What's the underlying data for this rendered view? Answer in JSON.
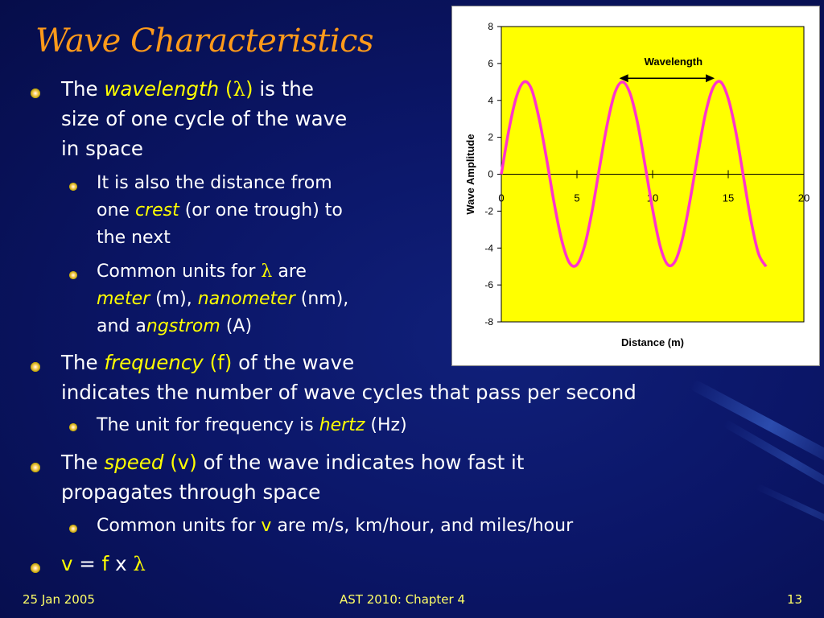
{
  "slide": {
    "title": "Wave Characteristics",
    "footer_left": "25 Jan 2005",
    "footer_center": "AST 2010: Chapter 4",
    "footer_right": "13"
  },
  "bullets": {
    "b1_the": "The",
    "b1_term": "wavelength",
    "b1_open": "(",
    "b1_symbol": "λ",
    "b1_close": ")",
    "b1_rest1": "is the",
    "b1_line2": "size of one cycle of the wave",
    "b1_line3": "in space",
    "s1a_line1": "It is also the distance from",
    "s1a_line2_pre": "one",
    "s1a_line2_term": "crest",
    "s1a_line2_post": "(or one trough) to",
    "s1a_line3": "the next",
    "s1b_pre": "Common units for",
    "s1b_symbol": "λ",
    "s1b_post": "are",
    "s1b_meter": "meter",
    "s1b_m": "(m),",
    "s1b_nanometer": "nanometer",
    "s1b_nm": "(nm),",
    "s1b_and": "and a",
    "s1b_angstrom": "ngstrom",
    "s1b_A": "(A)",
    "b2_the": "The",
    "b2_term": "frequency",
    "b2_sym": "(f)",
    "b2_rest1": "of the wave",
    "b2_line2": "indicates the number of wave cycles that pass per second",
    "s2_pre": "The unit for frequency is",
    "s2_term": "hertz",
    "s2_post": "(Hz)",
    "b3_the": "The",
    "b3_term": "speed",
    "b3_sym": "(v)",
    "b3_rest1": "of the wave indicates how fast it",
    "b3_line2": "propagates through space",
    "s3_pre": "Common units for",
    "s3_sym": "v",
    "s3_post": "are m/s, km/hour, and miles/hour",
    "b4_v": "v",
    "b4_eq": "=",
    "b4_f": "f",
    "b4_x": "x",
    "b4_lambda": "λ"
  },
  "colors": {
    "title": "#ff9a1a",
    "highlight": "#ffff00",
    "plot_bg": "#ffff00",
    "curve": "#ff33cc",
    "background": "#0b1668"
  },
  "chart_data": {
    "type": "line",
    "xlabel": "Distance (m)",
    "ylabel": "Wave Amplitude",
    "xlim": [
      0,
      20
    ],
    "ylim": [
      -8,
      8
    ],
    "x_ticks": [
      "0",
      "5",
      "10",
      "15",
      "20"
    ],
    "y_ticks": [
      "8",
      "6",
      "4",
      "2",
      "0",
      "-2",
      "-4",
      "-6",
      "-8"
    ],
    "grid": false,
    "legend": "none",
    "annotation": {
      "text": "Wavelength",
      "x_start": 7.8,
      "x_end": 14.1,
      "y": 5.2
    },
    "series": [
      {
        "x": [
          0,
          0.5,
          1,
          1.5,
          2,
          2.5,
          3,
          3.5,
          4,
          4.5,
          5,
          5.5,
          6,
          6.5,
          7,
          7.5,
          8,
          8.5,
          9,
          9.5,
          10,
          10.5,
          11,
          11.5,
          12,
          12.5,
          13,
          13.5,
          14,
          14.5,
          15,
          15.5,
          16,
          16.5,
          17,
          17.5
        ],
        "y": [
          0,
          2.4,
          4.2,
          5.0,
          4.6,
          3.0,
          0.8,
          -1.6,
          -3.6,
          -4.8,
          -4.9,
          -3.9,
          -2.0,
          0.4,
          2.7,
          4.4,
          5.0,
          4.4,
          2.8,
          0.5,
          -1.9,
          -3.9,
          -4.9,
          -4.7,
          -3.4,
          -1.3,
          1.1,
          3.3,
          4.7,
          5.0,
          4.1,
          2.3,
          -0.1,
          -2.5,
          -4.3,
          -5.0
        ]
      }
    ]
  }
}
